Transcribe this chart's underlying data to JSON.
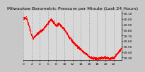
{
  "title": "Milwaukee Barometric Pressure per Minute (Last 24 Hours)",
  "background_color": "#c8c8c8",
  "plot_bg_color": "#d8d8d8",
  "grid_color": "#aaaaaa",
  "line_color": "#ff0000",
  "ylim": [
    29.25,
    30.15
  ],
  "yticks": [
    29.3,
    29.4,
    29.5,
    29.6,
    29.7,
    29.8,
    29.9,
    30.0,
    30.1
  ],
  "title_fontsize": 4.5,
  "tick_fontsize": 3.2,
  "marker_size": 0.7,
  "n_points": 1440,
  "curve_segments": [
    {
      "t0": 0.0,
      "t1": 0.03,
      "v0": 30.02,
      "v1": 30.02
    },
    {
      "t0": 0.03,
      "t1": 0.08,
      "v0": 30.02,
      "v1": 29.72
    },
    {
      "t0": 0.08,
      "t1": 0.1,
      "v0": 29.72,
      "v1": 29.65
    },
    {
      "t0": 0.1,
      "t1": 0.13,
      "v0": 29.65,
      "v1": 29.72
    },
    {
      "t0": 0.13,
      "t1": 0.2,
      "v0": 29.72,
      "v1": 29.82
    },
    {
      "t0": 0.2,
      "t1": 0.28,
      "v0": 29.82,
      "v1": 30.0
    },
    {
      "t0": 0.28,
      "t1": 0.33,
      "v0": 30.0,
      "v1": 29.88
    },
    {
      "t0": 0.33,
      "t1": 0.36,
      "v0": 29.88,
      "v1": 29.92
    },
    {
      "t0": 0.36,
      "t1": 0.42,
      "v0": 29.92,
      "v1": 29.8
    },
    {
      "t0": 0.42,
      "t1": 0.46,
      "v0": 29.8,
      "v1": 29.68
    },
    {
      "t0": 0.46,
      "t1": 0.52,
      "v0": 29.68,
      "v1": 29.55
    },
    {
      "t0": 0.52,
      "t1": 0.6,
      "v0": 29.55,
      "v1": 29.42
    },
    {
      "t0": 0.6,
      "t1": 0.68,
      "v0": 29.42,
      "v1": 29.3
    },
    {
      "t0": 0.68,
      "t1": 0.75,
      "v0": 29.3,
      "v1": 29.28
    },
    {
      "t0": 0.75,
      "t1": 0.82,
      "v0": 29.28,
      "v1": 29.3
    },
    {
      "t0": 0.82,
      "t1": 0.88,
      "v0": 29.3,
      "v1": 29.28
    },
    {
      "t0": 0.88,
      "t1": 0.92,
      "v0": 29.28,
      "v1": 29.3
    },
    {
      "t0": 0.92,
      "t1": 1.0,
      "v0": 29.3,
      "v1": 29.48
    }
  ],
  "noise_std": 0.01,
  "noise_seed": 17
}
